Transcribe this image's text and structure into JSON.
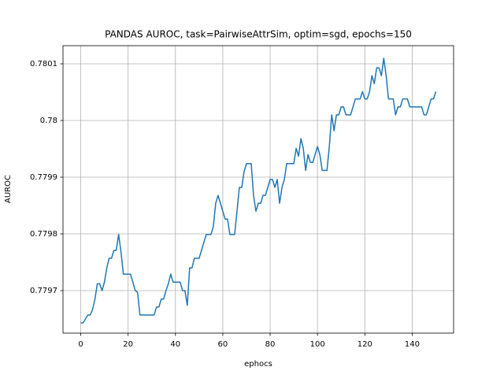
{
  "chart_data": {
    "type": "line",
    "title": "PANDAS AUROC, task=PairwiseAttrSim, optim=sgd, epochs=150",
    "x_label": "ephocs",
    "y_label": "AUROC",
    "x": [
      0,
      1,
      2,
      3,
      4,
      5,
      6,
      7,
      8,
      9,
      10,
      11,
      12,
      13,
      14,
      15,
      16,
      17,
      18,
      19,
      20,
      21,
      22,
      23,
      24,
      25,
      26,
      27,
      28,
      29,
      30,
      31,
      32,
      33,
      34,
      35,
      36,
      37,
      38,
      39,
      40,
      41,
      42,
      43,
      44,
      45,
      46,
      47,
      48,
      49,
      50,
      51,
      52,
      53,
      54,
      55,
      56,
      57,
      58,
      59,
      60,
      61,
      62,
      63,
      64,
      65,
      66,
      67,
      68,
      69,
      70,
      71,
      72,
      73,
      74,
      75,
      76,
      77,
      78,
      79,
      80,
      81,
      82,
      83,
      84,
      85,
      86,
      87,
      88,
      89,
      90,
      91,
      92,
      93,
      94,
      95,
      96,
      97,
      98,
      99,
      100,
      101,
      102,
      103,
      104,
      105,
      106,
      107,
      108,
      109,
      110,
      111,
      112,
      113,
      114,
      115,
      116,
      117,
      118,
      119,
      120,
      121,
      122,
      123,
      124,
      125,
      126,
      127,
      128,
      129,
      130,
      131,
      132,
      133,
      134,
      135,
      136,
      137,
      138,
      139,
      140,
      141,
      142,
      143,
      144,
      145,
      146,
      147,
      148,
      149,
      150
    ],
    "series": [
      {
        "name": "AUROC",
        "color": "#1f77b4",
        "values": [
          0.779643,
          0.779643,
          0.77965,
          0.779657,
          0.779657,
          0.779667,
          0.779685,
          0.779712,
          0.779712,
          0.7797,
          0.779715,
          0.77974,
          0.779757,
          0.779757,
          0.779771,
          0.779771,
          0.779799,
          0.779768,
          0.779729,
          0.779729,
          0.779729,
          0.779729,
          0.779715,
          0.7797,
          0.779697,
          0.779657,
          0.779657,
          0.779657,
          0.779657,
          0.779657,
          0.779657,
          0.779657,
          0.779671,
          0.779671,
          0.779685,
          0.779685,
          0.7797,
          0.779712,
          0.779729,
          0.779715,
          0.779715,
          0.779715,
          0.779715,
          0.7797,
          0.7797,
          0.779674,
          0.77974,
          0.77974,
          0.779757,
          0.779757,
          0.779757,
          0.779771,
          0.779785,
          0.779799,
          0.779799,
          0.779799,
          0.779813,
          0.779854,
          0.779868,
          0.779854,
          0.77984,
          0.779826,
          0.779826,
          0.779799,
          0.779799,
          0.779799,
          0.77984,
          0.779882,
          0.779882,
          0.77991,
          0.779924,
          0.779924,
          0.779924,
          0.779868,
          0.77984,
          0.779854,
          0.779854,
          0.779868,
          0.779868,
          0.779882,
          0.779896,
          0.779896,
          0.779882,
          0.779896,
          0.779854,
          0.779882,
          0.779896,
          0.779924,
          0.779924,
          0.779924,
          0.779924,
          0.779951,
          0.779937,
          0.779968,
          0.779951,
          0.779912,
          0.77994,
          0.779926,
          0.779926,
          0.77994,
          0.779954,
          0.77994,
          0.779912,
          0.779912,
          0.779912,
          0.779954,
          0.78001,
          0.779982,
          0.78001,
          0.78001,
          0.780024,
          0.780024,
          0.78001,
          0.78001,
          0.78001,
          0.780024,
          0.780038,
          0.780038,
          0.780038,
          0.780051,
          0.780038,
          0.780038,
          0.780051,
          0.780079,
          0.780065,
          0.780093,
          0.780093,
          0.780079,
          0.78011,
          0.780079,
          0.780038,
          0.780038,
          0.780038,
          0.78001,
          0.780024,
          0.780024,
          0.780038,
          0.780038,
          0.780038,
          0.780024,
          0.780024,
          0.780024,
          0.780024,
          0.780024,
          0.780024,
          0.78001,
          0.78001,
          0.780024,
          0.780038,
          0.780038,
          0.780051
        ]
      }
    ],
    "xlim": [
      -7.5,
      157.5
    ],
    "ylim": [
      0.779625,
      0.780132
    ],
    "xticks": [
      0,
      20,
      40,
      60,
      80,
      100,
      120,
      140
    ],
    "yticks": [
      0.7797,
      0.7798,
      0.7799,
      0.78,
      0.7801
    ],
    "grid": true
  }
}
